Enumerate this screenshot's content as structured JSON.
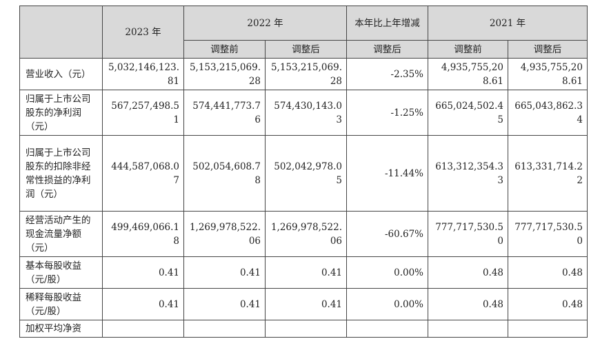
{
  "header": {
    "year_2023": "2023 年",
    "year_2022": "2022 年",
    "change": "本年比上年增减",
    "year_2021": "2021 年",
    "before_adj": "调整前",
    "after_adj": "调整后",
    "change_after_adj": "调整后"
  },
  "rows": [
    {
      "label": "营业收入（元）",
      "v2023": "5,032,146,123.81",
      "v2022_before": "5,153,215,069.28",
      "v2022_after": "5,153,215,069.28",
      "change": "-2.35%",
      "v2021_before": "4,935,755,208.61",
      "v2021_after": "4,935,755,208.61"
    },
    {
      "label": "归属于上市公司股东的净利润（元）",
      "v2023": "567,257,498.51",
      "v2022_before": "574,441,773.76",
      "v2022_after": "574,430,143.03",
      "change": "-1.25%",
      "v2021_before": "665,024,502.45",
      "v2021_after": "665,043,862.34"
    },
    {
      "label": "归属于上市公司股东的扣除非经常性损益的净利润（元）",
      "v2023": "444,587,068.07",
      "v2022_before": "502,054,608.78",
      "v2022_after": "502,042,978.05",
      "change": "-11.44%",
      "v2021_before": "613,312,354.33",
      "v2021_after": "613,331,714.22"
    },
    {
      "label": "经营活动产生的现金流量净额（元）",
      "v2023": "499,469,066.18",
      "v2022_before": "1,269,978,522.06",
      "v2022_after": "1,269,978,522.06",
      "change": "-60.67%",
      "v2021_before": "777,717,530.50",
      "v2021_after": "777,717,530.50"
    },
    {
      "label": "基本每股收益（元/股）",
      "v2023": "0.41",
      "v2022_before": "0.41",
      "v2022_after": "0.41",
      "change": "0.00%",
      "v2021_before": "0.48",
      "v2021_after": "0.48"
    },
    {
      "label": "稀释每股收益（元/股）",
      "v2023": "0.41",
      "v2022_before": "0.41",
      "v2022_after": "0.41",
      "change": "0.00%",
      "v2021_before": "0.48",
      "v2021_after": "0.48"
    }
  ],
  "cut_row_label": "加权平均净资"
}
